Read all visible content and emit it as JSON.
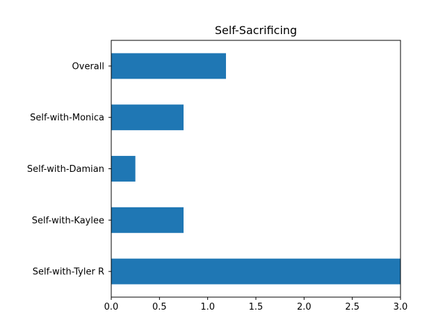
{
  "chart_data": {
    "type": "bar",
    "orientation": "horizontal",
    "title": "Self-Sacrificing",
    "xlabel": "",
    "ylabel": "",
    "categories": [
      "Overall",
      "Self-with-Monica",
      "Self-with-Damian",
      "Self-with-Kaylee",
      "Self-with-Tyler R"
    ],
    "values": [
      1.19,
      0.75,
      0.25,
      0.75,
      3.0
    ],
    "xlim": [
      0.0,
      3.0
    ],
    "xticks": [
      "0.0",
      "0.5",
      "1.0",
      "1.5",
      "2.0",
      "2.5",
      "3.0"
    ],
    "grid": false,
    "bar_color": "#1f77b4"
  }
}
